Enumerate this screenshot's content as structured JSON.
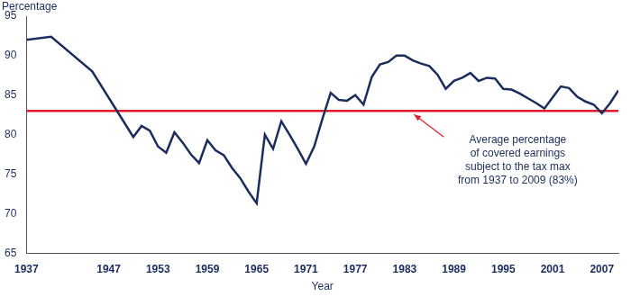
{
  "chart_data": {
    "type": "line",
    "y_label": "Percentage",
    "x_label": "Year",
    "x": [
      1937,
      1940,
      1945,
      1950,
      1951,
      1952,
      1953,
      1954,
      1955,
      1956,
      1957,
      1958,
      1959,
      1960,
      1961,
      1962,
      1963,
      1964,
      1965,
      1966,
      1967,
      1968,
      1969,
      1970,
      1971,
      1972,
      1973,
      1974,
      1975,
      1976,
      1977,
      1978,
      1979,
      1980,
      1981,
      1982,
      1983,
      1984,
      1985,
      1986,
      1987,
      1988,
      1989,
      1990,
      1991,
      1992,
      1993,
      1994,
      1995,
      1996,
      1997,
      1998,
      1999,
      2000,
      2001,
      2002,
      2003,
      2004,
      2005,
      2006,
      2007,
      2008,
      2009
    ],
    "values": [
      92.0,
      92.4,
      88.0,
      79.7,
      81.1,
      80.5,
      78.5,
      77.7,
      80.3,
      79.0,
      77.5,
      76.4,
      79.3,
      78.0,
      77.4,
      75.8,
      74.5,
      72.8,
      71.3,
      80.0,
      78.2,
      81.7,
      80.0,
      78.2,
      76.3,
      78.5,
      82.0,
      85.3,
      84.4,
      84.3,
      85.0,
      83.8,
      87.3,
      88.9,
      89.2,
      90.0,
      90.0,
      89.4,
      89.0,
      88.7,
      87.6,
      85.8,
      86.8,
      87.2,
      87.8,
      86.8,
      87.2,
      87.1,
      85.8,
      85.7,
      85.2,
      84.6,
      84.0,
      83.3,
      84.7,
      86.1,
      85.9,
      84.8,
      84.2,
      83.8,
      82.7,
      84.0,
      85.6
    ],
    "color": "#1b2d5c",
    "xlim": [
      1937,
      2009
    ],
    "xticks": [
      1937,
      1947,
      1953,
      1959,
      1965,
      1971,
      1977,
      1983,
      1989,
      1995,
      2001,
      2007
    ],
    "ylim": [
      65,
      95
    ],
    "yticks": [
      65,
      70,
      75,
      80,
      85,
      90,
      95
    ],
    "grid": false,
    "reference_line": {
      "value": 83,
      "color": "#e3192d"
    },
    "annotation": [
      "Average percentage",
      "of covered earnings",
      "subject to the tax max",
      "from 1937 to 2009 (83%)"
    ]
  }
}
